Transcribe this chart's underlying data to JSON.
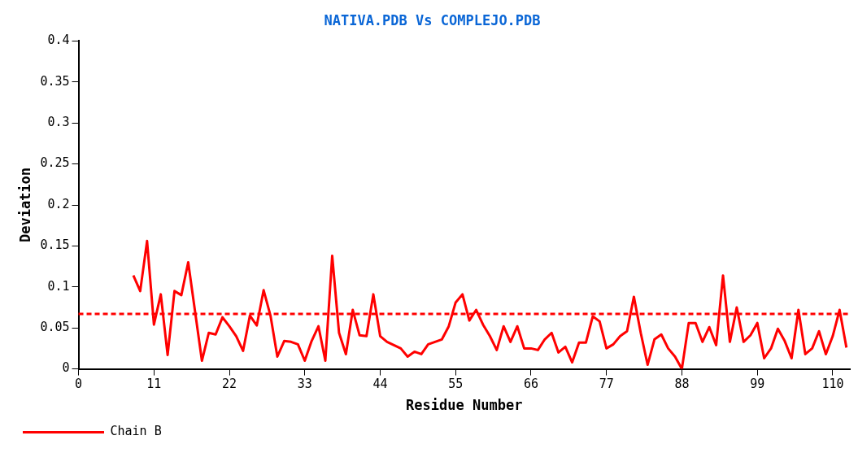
{
  "chart_data": {
    "type": "line",
    "title": "NATIVA.PDB Vs COMPLEJO.PDB",
    "xlabel": "Residue Number",
    "ylabel": "Deviation",
    "x": [
      8,
      9,
      10,
      11,
      12,
      13,
      14,
      15,
      16,
      17,
      18,
      19,
      20,
      21,
      22,
      23,
      24,
      25,
      26,
      27,
      28,
      29,
      30,
      31,
      32,
      33,
      34,
      35,
      36,
      37,
      38,
      39,
      40,
      41,
      42,
      43,
      44,
      45,
      46,
      47,
      48,
      49,
      50,
      51,
      52,
      53,
      54,
      55,
      56,
      57,
      58,
      59,
      60,
      61,
      62,
      63,
      64,
      65,
      66,
      67,
      68,
      69,
      70,
      71,
      72,
      73,
      74,
      75,
      76,
      77,
      78,
      79,
      80,
      81,
      82,
      83,
      84,
      85,
      86,
      87,
      88,
      89,
      90,
      91,
      92,
      93,
      94,
      95,
      96,
      97,
      98,
      99,
      100,
      101,
      102,
      103,
      104,
      105,
      106,
      107,
      108,
      109,
      110,
      111,
      112
    ],
    "series": [
      {
        "name": "Chain B",
        "color": "#ff0000",
        "values": [
          0.114,
          0.095,
          0.156,
          0.054,
          0.091,
          0.017,
          0.095,
          0.09,
          0.13,
          0.07,
          0.01,
          0.044,
          0.042,
          0.063,
          0.052,
          0.04,
          0.022,
          0.065,
          0.053,
          0.096,
          0.065,
          0.015,
          0.034,
          0.033,
          0.03,
          0.01,
          0.034,
          0.052,
          0.01,
          0.138,
          0.044,
          0.018,
          0.072,
          0.041,
          0.04,
          0.091,
          0.04,
          0.033,
          0.029,
          0.025,
          0.015,
          0.021,
          0.018,
          0.03,
          0.033,
          0.036,
          0.052,
          0.081,
          0.091,
          0.059,
          0.072,
          0.054,
          0.04,
          0.023,
          0.052,
          0.033,
          0.052,
          0.025,
          0.025,
          0.023,
          0.036,
          0.044,
          0.02,
          0.027,
          0.008,
          0.032,
          0.032,
          0.064,
          0.058,
          0.025,
          0.03,
          0.04,
          0.046,
          0.088,
          0.044,
          0.005,
          0.036,
          0.042,
          0.025,
          0.015,
          0,
          0.056,
          0.056,
          0.033,
          0.051,
          0.029,
          0.114,
          0.033,
          0.075,
          0.033,
          0.041,
          0.056,
          0.013,
          0.025,
          0.049,
          0.034,
          0.013,
          0.072,
          0.018,
          0.025,
          0.046,
          0.018,
          0.04,
          0.072,
          0.026
        ]
      }
    ],
    "xlim": [
      0,
      112.5
    ],
    "xticks": [
      0,
      11,
      22,
      33,
      44,
      55,
      66,
      77,
      88,
      99,
      110
    ],
    "ylim": [
      0,
      0.4
    ],
    "yticks": [
      0,
      0.05,
      0.1,
      0.15,
      0.2,
      0.25,
      0.3,
      0.35,
      0.4
    ],
    "ref_lines": [
      {
        "axis": "y",
        "value": 0.067,
        "color": "#ff0000",
        "line_style": "dashed"
      }
    ],
    "grid": false,
    "legend": "bottom left",
    "marker": "none",
    "line_style": "solid"
  }
}
